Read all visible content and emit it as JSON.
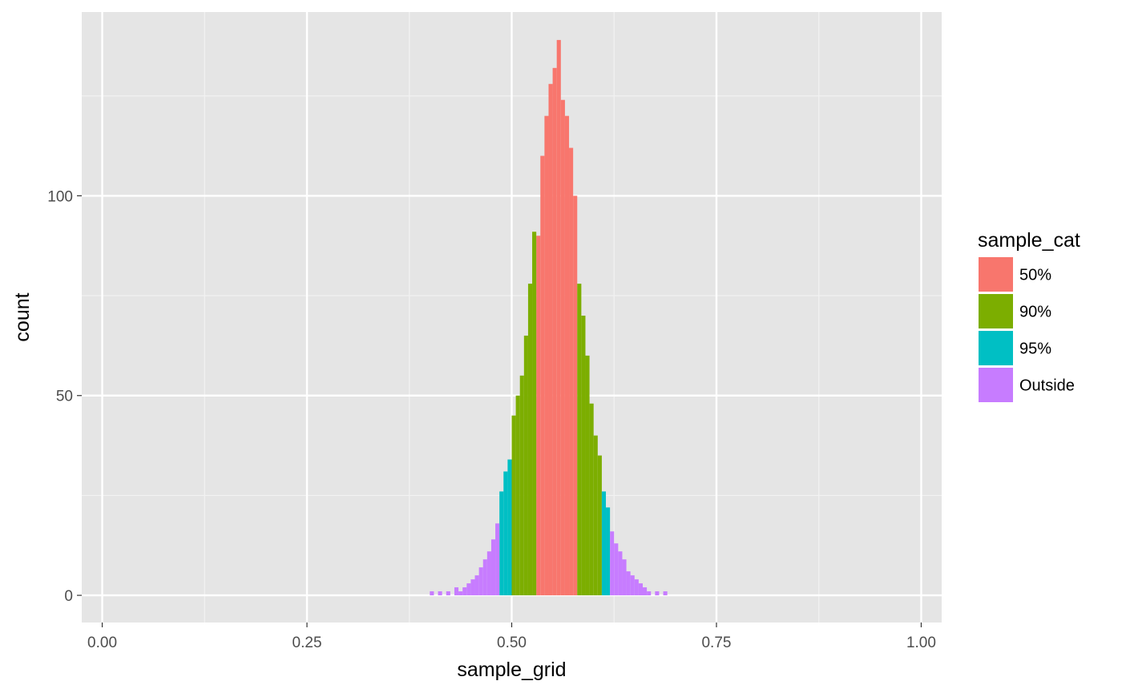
{
  "chart_data": {
    "type": "bar",
    "title": "",
    "xlabel": "sample_grid",
    "ylabel": "count",
    "xlim": [
      -0.025,
      1.025
    ],
    "ylim": [
      -6.8,
      146
    ],
    "x_ticks": [
      0.0,
      0.25,
      0.5,
      0.75,
      1.0
    ],
    "x_tick_labels": [
      "0.00",
      "0.25",
      "0.50",
      "0.75",
      "1.00"
    ],
    "y_ticks": [
      0,
      50,
      100
    ],
    "y_tick_labels": [
      "0",
      "50",
      "100"
    ],
    "grid": true,
    "legend": {
      "title": "sample_cat",
      "position": "right",
      "entries": [
        {
          "label": "50%",
          "color": "#F8766D"
        },
        {
          "label": "90%",
          "color": "#7CAE00"
        },
        {
          "label": "95%",
          "color": "#00BFC4"
        },
        {
          "label": "Outside",
          "color": "#C77CFF"
        }
      ]
    },
    "series": [
      {
        "name": "50%",
        "color": "#F8766D",
        "x": [
          0.5325,
          0.5375,
          0.5425,
          0.5475,
          0.5525,
          0.5575,
          0.5625,
          0.5675,
          0.5725,
          0.5775
        ],
        "values": [
          90,
          110,
          120,
          128,
          132,
          139,
          124,
          120,
          112,
          100
        ]
      },
      {
        "name": "90%",
        "color": "#7CAE00",
        "x": [
          0.5025,
          0.5075,
          0.5125,
          0.5175,
          0.5225,
          0.5275,
          0.5825,
          0.5875,
          0.5925,
          0.5975,
          0.6025,
          0.6075
        ],
        "values": [
          45,
          50,
          55,
          65,
          78,
          91,
          78,
          70,
          60,
          48,
          40,
          35
        ]
      },
      {
        "name": "95%",
        "color": "#00BFC4",
        "x": [
          0.4875,
          0.4925,
          0.4975,
          0.6125,
          0.6175
        ],
        "values": [
          26,
          31,
          34,
          26,
          22
        ]
      },
      {
        "name": "Outside",
        "color": "#C77CFF",
        "x": [
          0.4025,
          0.4125,
          0.4225,
          0.4325,
          0.4375,
          0.4425,
          0.4475,
          0.4525,
          0.4575,
          0.4625,
          0.4675,
          0.4725,
          0.4775,
          0.4825,
          0.6225,
          0.6275,
          0.6325,
          0.6375,
          0.6425,
          0.6475,
          0.6525,
          0.6575,
          0.6625,
          0.6675,
          0.6775,
          0.6875
        ],
        "values": [
          1,
          1,
          1,
          2,
          1,
          2,
          3,
          4,
          5,
          7,
          9,
          11,
          14,
          18,
          16,
          13,
          11,
          9,
          6,
          5,
          4,
          3,
          2,
          1,
          1,
          1
        ]
      }
    ]
  }
}
